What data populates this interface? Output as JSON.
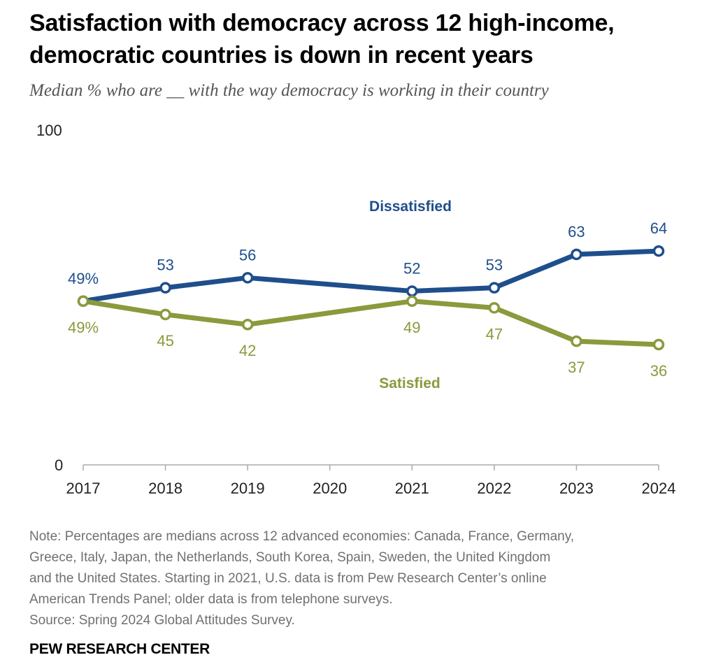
{
  "header": {
    "title_line1": "Satisfaction with democracy across 12 high-income,",
    "title_line2": "democratic countries is down in recent years",
    "subtitle": "Median % who are __ with the way democracy is working in their country"
  },
  "chart_data": {
    "type": "line",
    "title": "Satisfaction with democracy across 12 high-income, democratic countries is down in recent years",
    "subtitle": "Median % who are __ with the way democracy is working in their country",
    "x": [
      2017,
      2018,
      2019,
      2020,
      2021,
      2022,
      2023,
      2024
    ],
    "xticks": [
      "2017",
      "2018",
      "2019",
      "2020",
      "2021",
      "2022",
      "2023",
      "2024"
    ],
    "ylim": [
      0,
      100
    ],
    "ytick_labels": [
      "0",
      "100"
    ],
    "grid": false,
    "series": [
      {
        "name": "Dissatisfied",
        "color": "#1f4e8c",
        "label_position": "above",
        "x": [
          2017,
          2018,
          2019,
          2021,
          2022,
          2023,
          2024
        ],
        "values": [
          49,
          53,
          56,
          52,
          53,
          63,
          64
        ],
        "labels": [
          "49%",
          "53",
          "56",
          "52",
          "53",
          "63",
          "64"
        ]
      },
      {
        "name": "Satisfied",
        "color": "#8a9a3c",
        "label_position": "below",
        "x": [
          2017,
          2018,
          2019,
          2021,
          2022,
          2023,
          2024
        ],
        "values": [
          49,
          45,
          42,
          49,
          47,
          37,
          36
        ],
        "labels": [
          "49%",
          "45",
          "42",
          "49",
          "47",
          "37",
          "36"
        ]
      }
    ]
  },
  "footer": {
    "note_lines": [
      "Note: Percentages are medians across 12 advanced economies: Canada, France, Germany,",
      "Greece, Italy, Japan, the Netherlands, South Korea, Spain, Sweden, the United Kingdom",
      "and the United States. Starting in 2021, U.S. data is from Pew Research Center’s online",
      "American Trends Panel; older data is from telephone surveys."
    ],
    "source": "Source: Spring 2024 Global Attitudes Survey.",
    "brand": "PEW RESEARCH CENTER"
  }
}
